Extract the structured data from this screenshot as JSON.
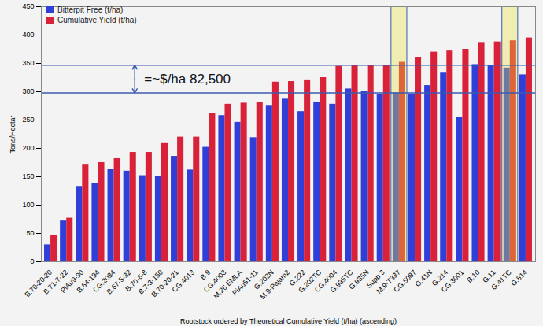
{
  "chart_data": {
    "type": "bar",
    "x_label": "Rootstock ordered by Theoretical Cumulative Yield (t/ha) (ascending)",
    "y_label": "Tons/Hectar",
    "categories": [
      "B.70-20-20",
      "B.71-7-22",
      "PiAu9-90",
      "B.64-194",
      "CG.2034",
      "B.67-5-32",
      "B.70-6-8",
      "B.7-3-150",
      "B.70-20-21",
      "CG.4013",
      "B.9",
      "CG.4003",
      "M.26 EMLA",
      "PiAu51-11",
      "G.202N",
      "M.9-Pajam2",
      "G.222",
      "G.202TC",
      "CG.4004",
      "G.935TC",
      "G.935N",
      "Supp.3",
      "M.9-T337",
      "CG.5087",
      "G.41N",
      "G.214",
      "CG.3001",
      "B.10",
      "G.11",
      "G.41TC",
      "G.814"
    ],
    "series": [
      {
        "name": "Bitterpit Free (t/ha)",
        "color": "#2f3fd8",
        "values": [
          30,
          72,
          133,
          138,
          163,
          160,
          152,
          150,
          186,
          162,
          202,
          258,
          246,
          219,
          276,
          287,
          265,
          282,
          278,
          305,
          300,
          295,
          298,
          296,
          311,
          333,
          255,
          348,
          347,
          342,
          330
        ]
      },
      {
        "name": "Cumulative Yield (t/ha)",
        "color": "#d9223a",
        "values": [
          47,
          77,
          172,
          175,
          182,
          193,
          193,
          210,
          220,
          220,
          262,
          278,
          280,
          281,
          317,
          318,
          321,
          325,
          345,
          347,
          347,
          347,
          352,
          361,
          370,
          372,
          375,
          387,
          388,
          390,
          395
        ]
      }
    ],
    "ylim": [
      0,
      450
    ],
    "yticks": [
      0,
      50,
      100,
      150,
      200,
      250,
      300,
      350,
      400,
      450
    ],
    "grid": false,
    "legend": "top-left",
    "reference_lines": [
      347,
      298
    ],
    "reference_line_color": "#3b5bb0",
    "annotation": "=~$/ha 82,500",
    "highlighted_categories": [
      "M.9-T337",
      "G.41TC"
    ],
    "highlight_color": "#e8e23a"
  }
}
